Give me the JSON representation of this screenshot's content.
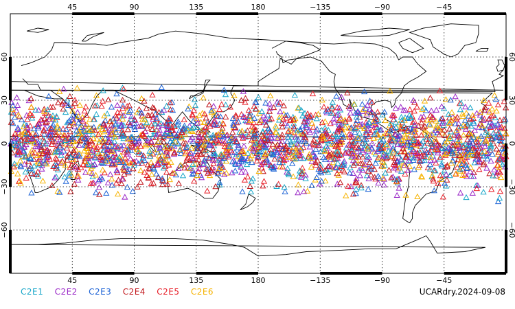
{
  "map": {
    "top_lon_labels": [
      "45",
      "90",
      "135",
      "180",
      "−135",
      "−90",
      "−45"
    ],
    "bottom_lon_labels": [
      "45",
      "90",
      "135",
      "180",
      "−135",
      "−90",
      "−45"
    ],
    "lat_labels": [
      "60",
      "30",
      "0",
      "−30",
      "−60"
    ],
    "graticule_lons": [
      45,
      90,
      135,
      180,
      -135,
      -90,
      -45
    ],
    "graticule_lats": [
      60,
      30,
      0,
      -30,
      -60
    ],
    "lon_range": [
      0,
      360
    ],
    "lat_range": [
      -90,
      90
    ],
    "marker_shape": "open-triangle",
    "coast_color": "#000000"
  },
  "legend": {
    "items": [
      {
        "label": "C2E1",
        "color": "#19a7c9"
      },
      {
        "label": "C2E2",
        "color": "#9a27c7"
      },
      {
        "label": "C2E3",
        "color": "#1f64d6"
      },
      {
        "label": "C2E4",
        "color": "#c2181d"
      },
      {
        "label": "C2E5",
        "color": "#e8202a"
      },
      {
        "label": "C2E6",
        "color": "#f6b300"
      }
    ]
  },
  "footer": {
    "stamp": "UCARdry.2024-09-08"
  }
}
